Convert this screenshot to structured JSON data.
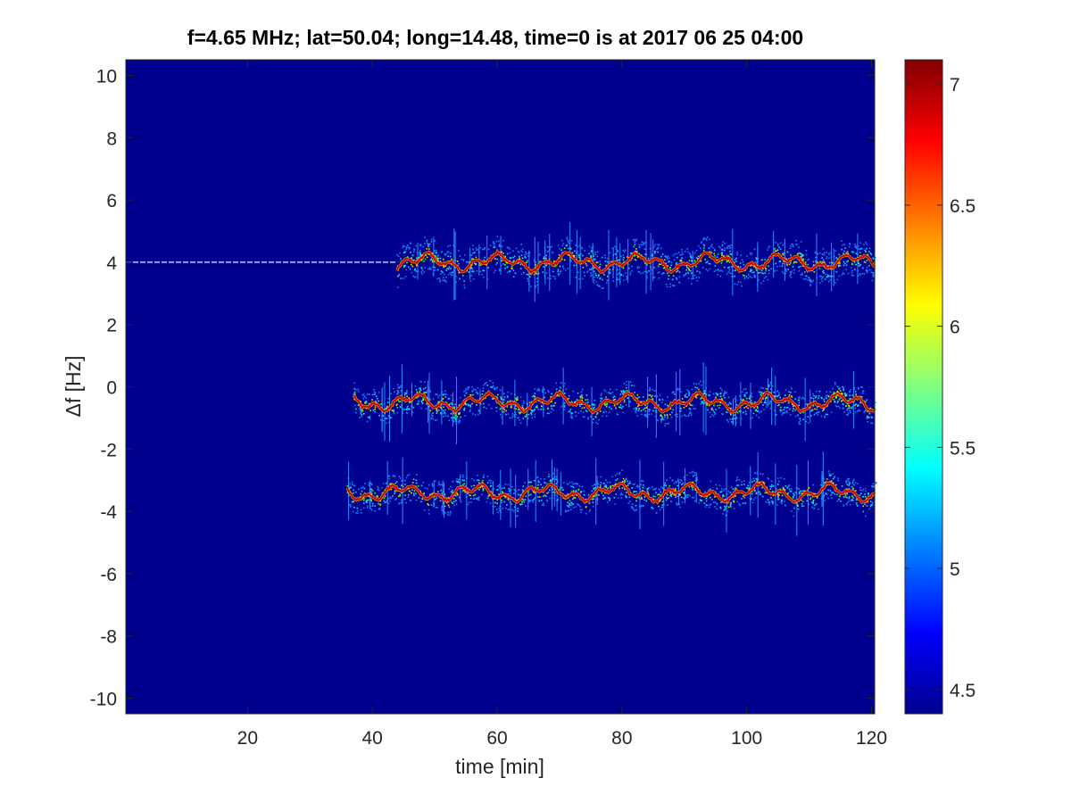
{
  "chart_data": {
    "type": "heatmap",
    "title": "f=4.65 MHz;  lat=50.04; long=14.48, time=0 is at 2017 06 25 04:00",
    "xlabel": "time [min]",
    "ylabel": "Δf [Hz]",
    "xlim": [
      0.5,
      120.5
    ],
    "ylim": [
      -10.5,
      10.5
    ],
    "xticks": [
      20,
      40,
      60,
      80,
      100,
      120
    ],
    "yticks": [
      10,
      8,
      6,
      4,
      2,
      0,
      -2,
      -4,
      -6,
      -8,
      -10
    ],
    "colormap": "jet",
    "clim": [
      4.4,
      7.1
    ],
    "colorbar_ticks": [
      7,
      6.5,
      6,
      5.5,
      5,
      4.5
    ],
    "grid": false,
    "traces": [
      {
        "delta_f_hz": 4.0,
        "start_min": 0.5,
        "end_min": 120.5,
        "note": "narrow carrier line 0.5–40 min, broadened 44–120 min"
      },
      {
        "delta_f_hz": -0.5,
        "start_min": 37,
        "end_min": 120.5
      },
      {
        "delta_f_hz": -3.4,
        "start_min": 36,
        "end_min": 120.5
      }
    ]
  }
}
